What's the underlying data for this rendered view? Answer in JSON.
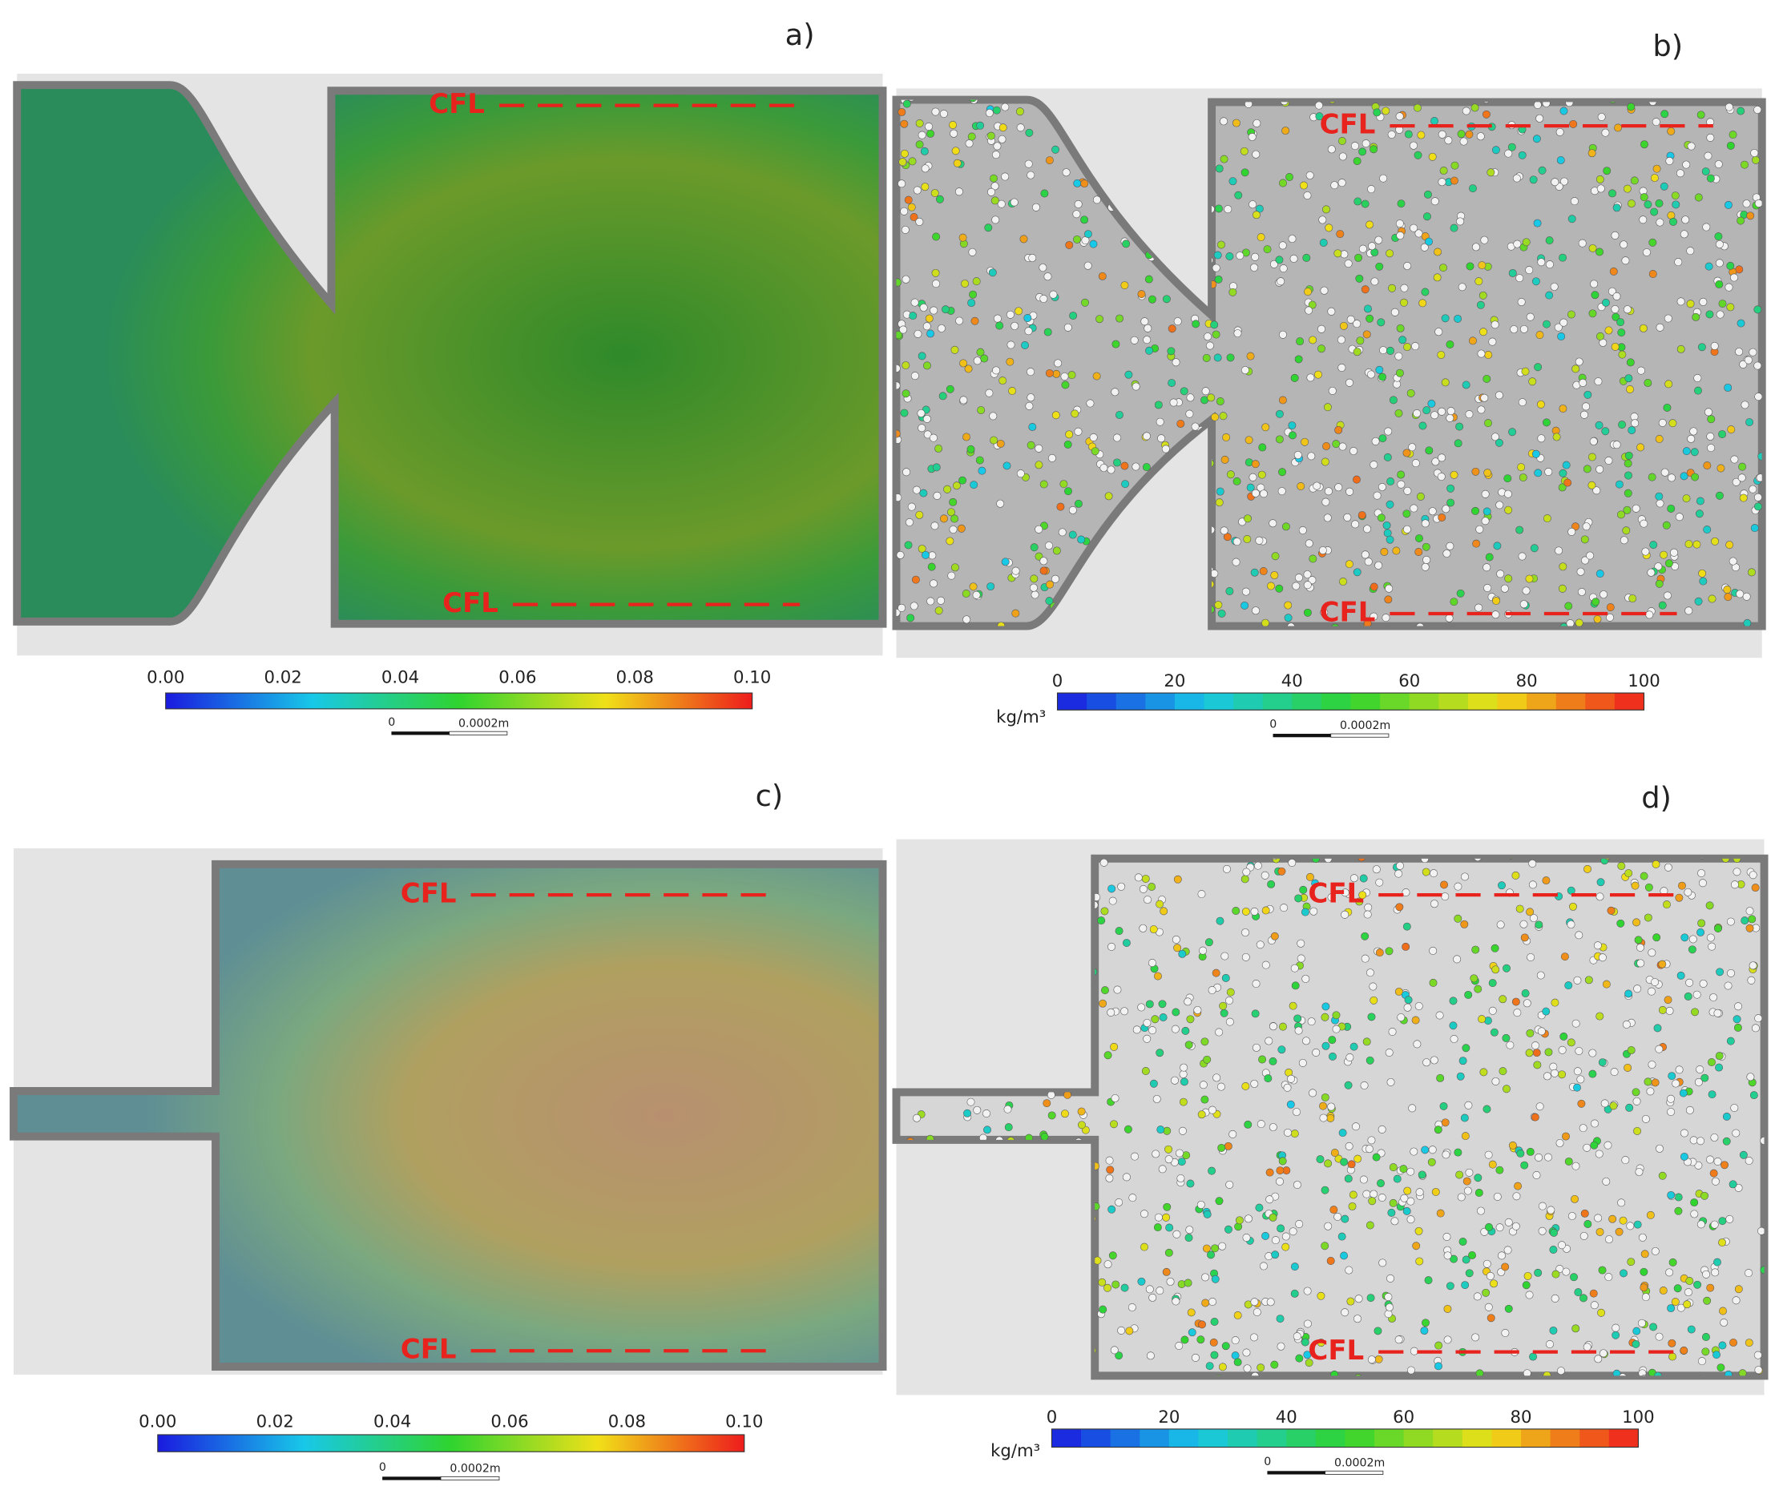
{
  "panels": [
    {
      "label": "a)",
      "cfl_top": "CFL",
      "cfl_bottom": "CFL",
      "colorbar": {
        "ticks": [
          "0.00",
          "0.02",
          "0.04",
          "0.06",
          "0.08",
          "0.10"
        ]
      },
      "scale_bar": {
        "start": "0",
        "end": "0.0002m"
      }
    },
    {
      "label": "b)",
      "cfl_top": "CFL",
      "cfl_bottom": "CFL",
      "colorbar": {
        "unit": "kg/m³",
        "ticks": [
          "0",
          "20",
          "40",
          "60",
          "80",
          "100"
        ]
      },
      "scale_bar": {
        "start": "0",
        "end": "0.0002m"
      }
    },
    {
      "label": "c)",
      "cfl_top": "CFL",
      "cfl_bottom": "CFL",
      "colorbar": {
        "ticks": [
          "0.00",
          "0.02",
          "0.04",
          "0.06",
          "0.08",
          "0.10"
        ]
      },
      "scale_bar": {
        "start": "0",
        "end": "0.0002m"
      }
    },
    {
      "label": "d)",
      "cfl_top": "CFL",
      "cfl_bottom": "CFL",
      "colorbar": {
        "unit": "kg/m³",
        "ticks": [
          "0",
          "20",
          "40",
          "60",
          "80",
          "100"
        ]
      },
      "scale_bar": {
        "start": "0",
        "end": "0.0002m"
      }
    }
  ]
}
